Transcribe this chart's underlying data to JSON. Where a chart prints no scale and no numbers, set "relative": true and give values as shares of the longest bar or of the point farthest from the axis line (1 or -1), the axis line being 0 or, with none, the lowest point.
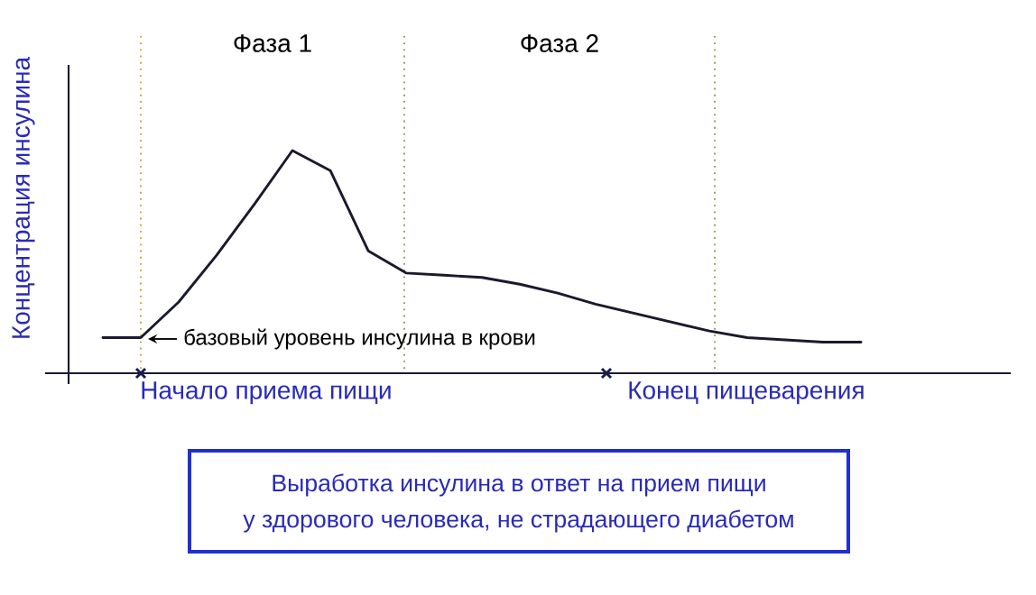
{
  "chart_data": {
    "type": "line",
    "relative": true,
    "ylabel": "Концентрация инсулина",
    "categories": [
      null,
      null,
      null,
      null,
      null,
      null,
      null,
      null,
      null,
      null,
      null,
      null,
      null,
      null,
      null,
      null,
      null,
      null,
      null,
      null,
      null
    ],
    "series": [
      {
        "color": "#1a1a2e",
        "values": [
          0.16,
          0.16,
          0.32,
          0.53,
          0.76,
          1.0,
          0.91,
          0.55,
          0.45,
          0.44,
          0.43,
          0.4,
          0.36,
          0.31,
          0.27,
          0.23,
          0.19,
          0.16,
          0.15,
          0.14,
          0.14
        ]
      }
    ],
    "annotations": [
      "Фаза 1",
      "Фаза 2",
      "базовый уровень инсулина в крови",
      "Начало приема пищи",
      "Конец пищеварения",
      "Выработка инсулина в ответ на прием пищи",
      "у здорового человека, не страдающего диабетом"
    ]
  }
}
